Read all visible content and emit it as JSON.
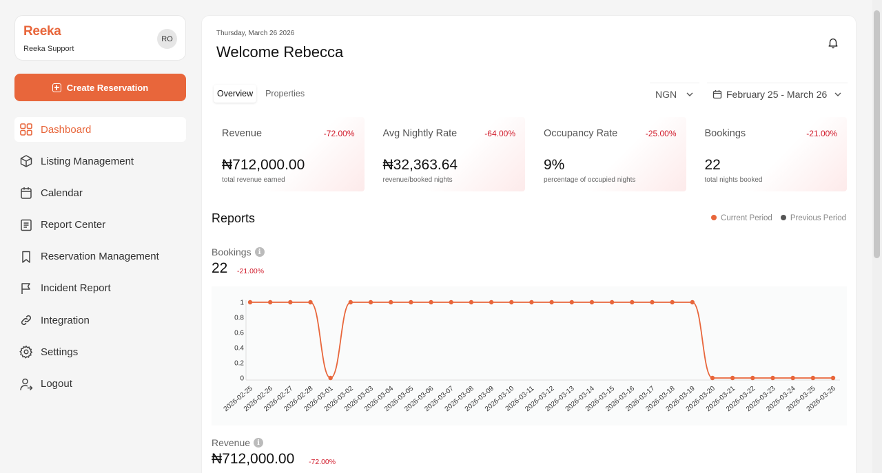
{
  "brand": {
    "logo": "Reeka",
    "subtitle": "Reeka Support",
    "avatar_initials": "RO"
  },
  "sidebar": {
    "create_button": "Create Reservation",
    "items": [
      {
        "label": "Dashboard",
        "icon": "grid-icon",
        "active": true
      },
      {
        "label": "Listing Management",
        "icon": "box-icon"
      },
      {
        "label": "Calendar",
        "icon": "calendar-icon"
      },
      {
        "label": "Report Center",
        "icon": "report-icon"
      },
      {
        "label": "Reservation Management",
        "icon": "bookmark-icon"
      },
      {
        "label": "Incident Report",
        "icon": "flag-icon"
      },
      {
        "label": "Integration",
        "icon": "link-icon"
      },
      {
        "label": "Settings",
        "icon": "gear-icon"
      },
      {
        "label": "Logout",
        "icon": "logout-icon"
      }
    ]
  },
  "header": {
    "date": "Thursday, March 26 2026",
    "welcome": "Welcome Rebecca",
    "tabs": [
      "Overview",
      "Properties"
    ],
    "currency": "NGN",
    "date_range": "February 25 - March 26"
  },
  "stats": [
    {
      "title": "Revenue",
      "change": "-72.00%",
      "value": "₦712,000.00",
      "sub": "total revenue earned"
    },
    {
      "title": "Avg Nightly Rate",
      "change": "-64.00%",
      "value": "₦32,363.64",
      "sub": "revenue/booked nights"
    },
    {
      "title": "Occupancy Rate",
      "change": "-25.00%",
      "value": "9%",
      "sub": "percentage of occupied nights"
    },
    {
      "title": "Bookings",
      "change": "-21.00%",
      "value": "22",
      "sub": "total nights booked"
    }
  ],
  "reports": {
    "title": "Reports",
    "legend_current": "Current Period",
    "legend_previous": "Previous Period",
    "bookings": {
      "label": "Bookings",
      "value": "22",
      "change": "-21.00%"
    },
    "revenue": {
      "label": "Revenue",
      "value": "₦712,000.00",
      "change": "-72.00%"
    }
  },
  "colors": {
    "accent": "#e8663b",
    "negative": "#d11a2a",
    "previous": "#555555"
  },
  "chart_data": {
    "type": "line",
    "x": [
      "2026-02-25",
      "2026-02-26",
      "2026-02-27",
      "2026-02-28",
      "2026-03-01",
      "2026-03-02",
      "2026-03-03",
      "2026-03-04",
      "2026-03-05",
      "2026-03-06",
      "2026-03-07",
      "2026-03-08",
      "2026-03-09",
      "2026-03-10",
      "2026-03-11",
      "2026-03-12",
      "2026-03-13",
      "2026-03-14",
      "2026-03-15",
      "2026-03-16",
      "2026-03-17",
      "2026-03-18",
      "2026-03-19",
      "2026-03-20",
      "2026-03-21",
      "2026-03-22",
      "2026-03-23",
      "2026-03-24",
      "2026-03-25",
      "2026-03-26"
    ],
    "series": [
      {
        "name": "Current Period",
        "values": [
          1,
          1,
          1,
          1,
          0,
          1,
          1,
          1,
          1,
          1,
          1,
          1,
          1,
          1,
          1,
          1,
          1,
          1,
          1,
          1,
          1,
          1,
          1,
          0,
          0,
          0,
          0,
          0,
          0,
          0
        ]
      }
    ],
    "yticks": [
      "0",
      "0.2",
      "0.4",
      "0.6",
      "0.8",
      "1"
    ],
    "ylim": [
      0,
      1
    ]
  }
}
